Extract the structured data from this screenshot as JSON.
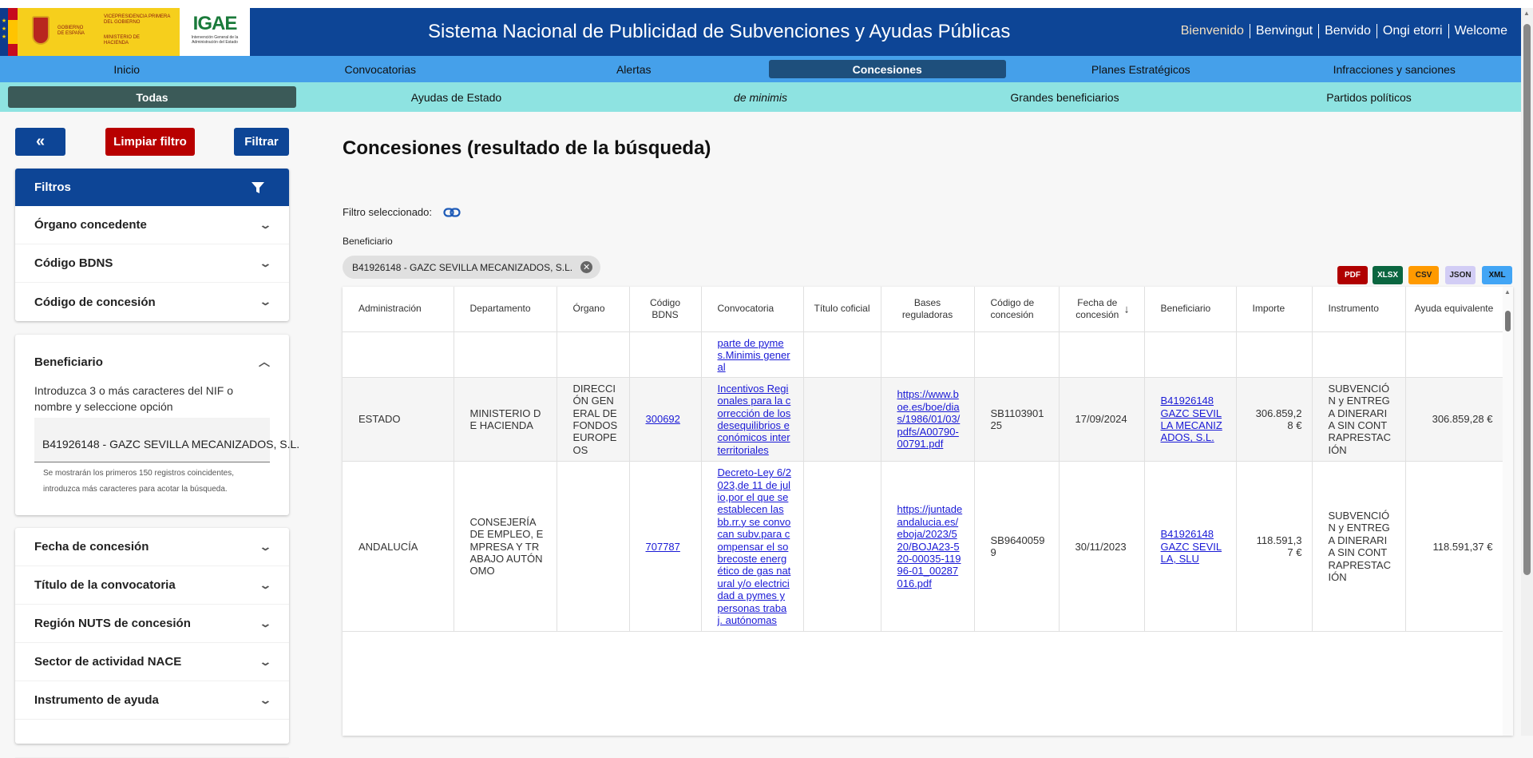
{
  "header": {
    "title": "Sistema Nacional de Publicidad de Subvenciones y Ayudas Públicas",
    "logo_gobierno": "GOBIERNO DE ESPAÑA",
    "logo_vice": "VICEPRESIDENCIA PRIMERA DEL GOBIERNO",
    "logo_ministerio": "MINISTERIO DE HACIENDA",
    "logo_igae": "IGAE",
    "logo_igae_sub": "Intervención General de la Administración del Estado",
    "languages": [
      "Bienvenido",
      "Benvingut",
      "Benvido",
      "Ongi etorri",
      "Welcome"
    ]
  },
  "nav": [
    "Inicio",
    "Convocatorias",
    "Alertas",
    "Concesiones",
    "Planes Estratégicos",
    "Infracciones y sanciones"
  ],
  "nav_active": "Concesiones",
  "subnav": [
    "Todas",
    "Ayudas de Estado",
    "de minimis",
    "Grandes beneficiarios",
    "Partidos políticos"
  ],
  "subnav_active": "Todas",
  "sidebar": {
    "back_label": "«",
    "clear_label": "Limpiar filtro",
    "filter_label": "Filtrar",
    "filters_title": "Filtros",
    "group1": [
      "Órgano concedente",
      "Código BDNS",
      "Código de concesión"
    ],
    "beneficiario": {
      "title": "Beneficiario",
      "help": "Introduzca 3 o más caracteres del NIF o nombre y seleccione opción",
      "value": "B41926148 - GAZC SEVILLA MECANIZADOS, S.L.",
      "hint": "Se mostrarán los primeros 150 registros coincidentes, introduzca más caracteres para acotar la búsqueda."
    },
    "group2": [
      "Fecha de concesión",
      "Título de la convocatoria",
      "Región NUTS de concesión",
      "Sector de actividad NACE",
      "Instrumento de ayuda"
    ]
  },
  "main": {
    "title": "Concesiones (resultado de la búsqueda)",
    "filter_selected": "Filtro seleccionado:",
    "filter_field": "Beneficiario",
    "chip": "B41926148 - GAZC SEVILLA MECANIZADOS, S.L.",
    "exports": [
      {
        "label": "PDF",
        "color": "#b00000"
      },
      {
        "label": "XLSX",
        "color": "#0b6640"
      },
      {
        "label": "CSV",
        "color": "#ff9a00"
      },
      {
        "label": "JSON",
        "color": "#d2cdf5"
      },
      {
        "label": "XML",
        "color": "#42a5f5"
      }
    ]
  },
  "table": {
    "columns": [
      "Administración",
      "Departamento",
      "Órgano",
      "Código BDNS",
      "Convocatoria",
      "Título coficial",
      "Bases reguladoras",
      "Código de concesión",
      "Fecha de concesión",
      "Beneficiario",
      "Importe",
      "Instrumento",
      "Ayuda equivalente"
    ],
    "sort_column": "Fecha de concesión",
    "sort_dir": "desc",
    "rows": [
      {
        "admin": "",
        "depto": "",
        "organo": "",
        "bdns": "",
        "convocatoria": "parte de pymes.Minimis general",
        "titulo": "",
        "bases": "",
        "codigo": "",
        "fecha": "",
        "beneficiario": "",
        "importe": "",
        "instrumento": "",
        "ayuda": ""
      },
      {
        "admin": "ESTADO",
        "depto": "MINISTERIO DE HACIENDA",
        "organo": "DIRECCIÓN GENERAL DE FONDOS EUROPEOS",
        "bdns": "300692",
        "convocatoria": "Incentivos Regionales para la corrección de los desequilibrios económicos interterritoriales",
        "titulo": "",
        "bases": "https://www.boe.es/boe/dias/1986/01/03/pdfs/A00790-00791.pdf",
        "codigo": "SB110390125",
        "fecha": "17/09/2024",
        "beneficiario": "B41926148 GAZC SEVILLA MECANIZADOS, S.L.",
        "importe": "306.859,28 €",
        "instrumento": "SUBVENCIÓN y ENTREGA DINERARIA SIN CONTRAPRESTACIÓN",
        "ayuda": "306.859,28 €"
      },
      {
        "admin": "ANDALUCÍA",
        "depto": "CONSEJERÍA DE EMPLEO, EMPRESA Y TRABAJO AUTÓNOMO",
        "organo": "",
        "bdns": "707787",
        "convocatoria": "Decreto-Ley 6/2023,de 11 de julio,por el que se establecen las bb.rr.y se convocan subv.para compensar el sobrecoste energético de gas natural y/o electricidad a pymes y personas trabaj. autónomas",
        "titulo": "",
        "bases": "https://juntadeandalucia.es/eboja/2023/520/BOJA23-520-00035-11996-01_00287016.pdf",
        "codigo": "SB96400599",
        "fecha": "30/11/2023",
        "beneficiario": "B41926148 GAZC SEVILLA, SLU",
        "importe": "118.591,37 €",
        "instrumento": "SUBVENCIÓN y ENTREGA DINERARIA SIN CONTRAPRESTACIÓN",
        "ayuda": "118.591,37 €"
      }
    ]
  }
}
